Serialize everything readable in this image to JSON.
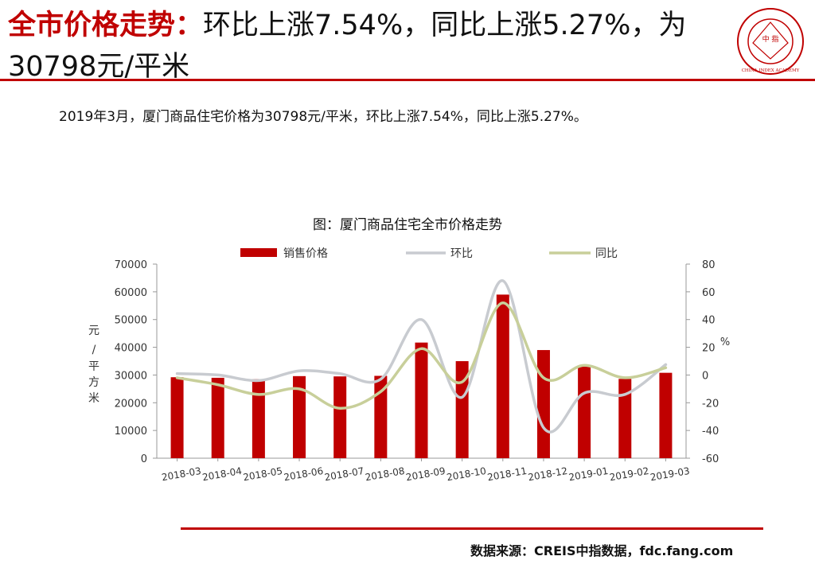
{
  "header": {
    "title_highlight": "全市价格走势：",
    "title_rest": "环比上涨7.54%，同比上涨5.27%，为30798元/平米",
    "logo_text": "中 指",
    "logo_ring_text": "CHINA INDEX ACADEMY"
  },
  "summary": "2019年3月，厦门商品住宅价格为30798元/平米，环比上涨7.54%，同比上涨5.27%。",
  "footer": {
    "source": "数据来源：CREIS中指数据，fdc.fang.com"
  },
  "colors": {
    "accent": "#c00000",
    "bar": "#c00000",
    "mom_line": "#c8cbd0",
    "yoy_line": "#c8cf9a"
  },
  "chart_data": {
    "type": "bar",
    "title": "图：厦门商品住宅全市价格走势",
    "categories": [
      "2018-03",
      "2018-04",
      "2018-05",
      "2018-06",
      "2018-07",
      "2018-08",
      "2018-09",
      "2018-10",
      "2018-11",
      "2018-12",
      "2019-01",
      "2019-02",
      "2019-03"
    ],
    "series": [
      {
        "name": "销售价格",
        "type": "bar",
        "axis": "left",
        "values": [
          29200,
          29000,
          28500,
          29600,
          29500,
          29700,
          41700,
          35000,
          59000,
          39000,
          33000,
          28600,
          30798
        ]
      },
      {
        "name": "环比",
        "type": "line",
        "axis": "right",
        "values": [
          1,
          0,
          -4,
          3,
          1,
          -3,
          40,
          -16,
          68,
          -38,
          -13,
          -14,
          7.54
        ]
      },
      {
        "name": "同比",
        "type": "line",
        "axis": "right",
        "values": [
          -2,
          -7,
          -14,
          -10,
          -24,
          -12,
          19,
          -5,
          52,
          -2,
          7,
          -2,
          5.27
        ]
      }
    ],
    "ylabel_left": "元/平方米",
    "ylabel_right": "%",
    "ylim_left": [
      0,
      70000
    ],
    "ylim_right": [
      -60,
      80
    ],
    "yticks_left": [
      0,
      10000,
      20000,
      30000,
      40000,
      50000,
      60000,
      70000
    ],
    "yticks_right": [
      -60,
      -40,
      -20,
      0,
      20,
      40,
      60,
      80
    ],
    "grid": false,
    "legend": "top"
  }
}
